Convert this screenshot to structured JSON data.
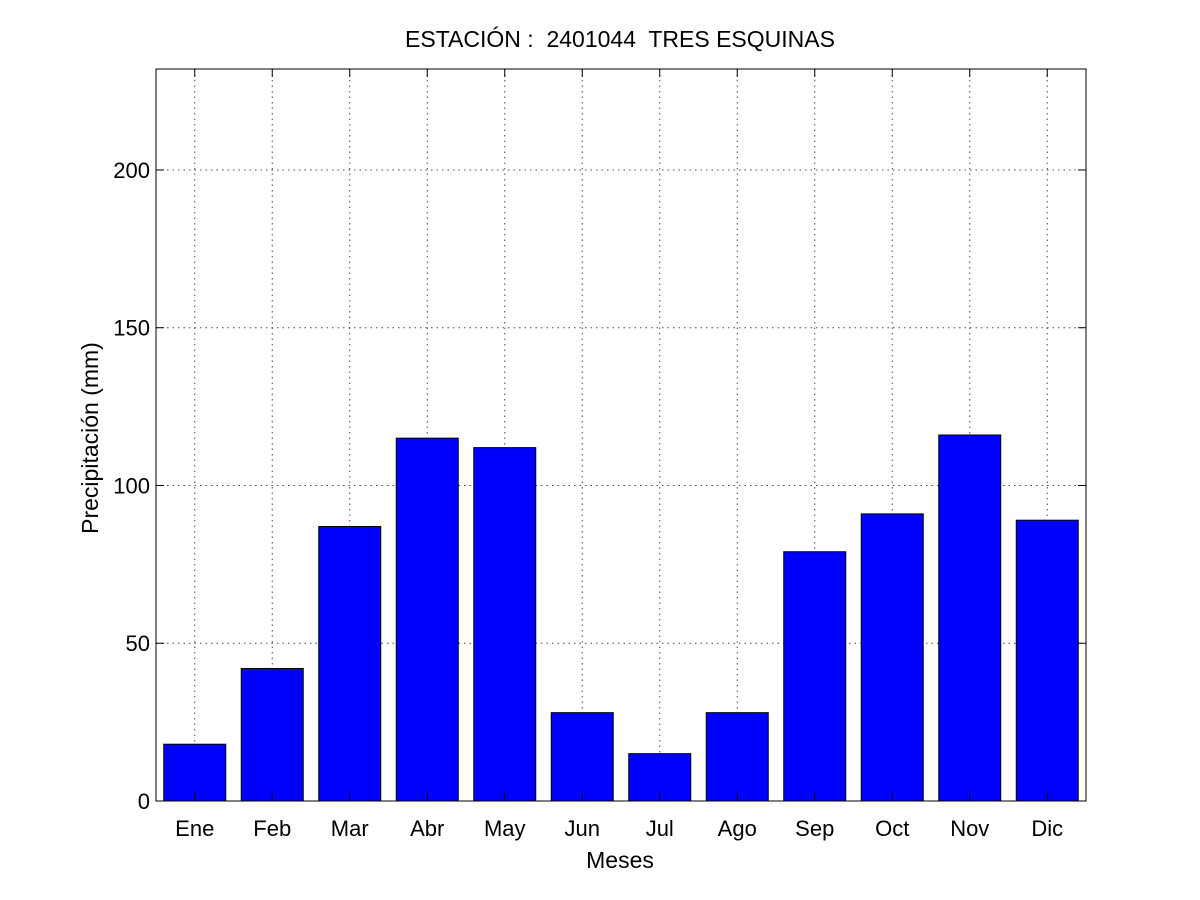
{
  "chart_data": {
    "type": "bar",
    "title": "ESTACIÓN :  2401044  TRES ESQUINAS",
    "xlabel": "Meses",
    "ylabel": "Precipitación (mm)",
    "categories": [
      "Ene",
      "Feb",
      "Mar",
      "Abr",
      "May",
      "Jun",
      "Jul",
      "Ago",
      "Sep",
      "Oct",
      "Nov",
      "Dic"
    ],
    "values": [
      18,
      42,
      87,
      115,
      112,
      28,
      15,
      28,
      79,
      91,
      116,
      89
    ],
    "ylim": [
      0,
      232
    ],
    "yticks": [
      0,
      50,
      100,
      150,
      200
    ],
    "grid": true,
    "bar_color": "#0000ff"
  }
}
